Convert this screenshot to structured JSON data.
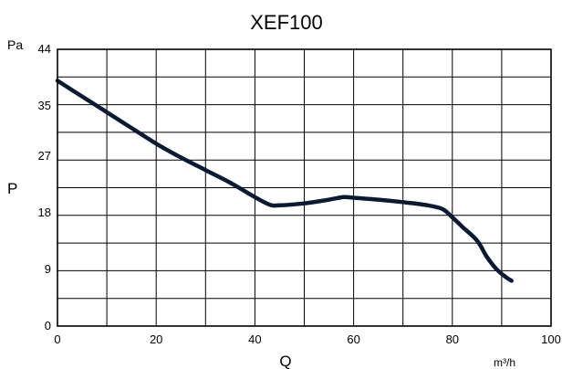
{
  "chart_data": {
    "type": "line",
    "title": "XEF100",
    "ylabel": "P",
    "yunit": "Pa",
    "xlabel": "Q",
    "xunit": "m³/h",
    "x_ticks": [
      0,
      20,
      40,
      60,
      80,
      100
    ],
    "y_ticks": [
      0,
      9,
      18,
      27,
      35,
      44
    ],
    "xlim": [
      0,
      100
    ],
    "ylim": [
      0,
      44
    ],
    "grid": true,
    "x_grid": [
      0,
      10,
      20,
      30,
      40,
      50,
      60,
      70,
      80,
      90,
      100
    ],
    "y_grid": [
      0,
      4.4,
      8.8,
      13.2,
      17.6,
      22,
      26.4,
      30.8,
      35.2,
      39.6,
      44
    ],
    "series": [
      {
        "x": [
          0,
          5,
          10,
          15,
          20,
          25,
          30,
          35,
          40,
          43,
          45,
          50,
          55,
          58,
          60,
          65,
          70,
          75,
          78,
          80,
          82,
          85,
          87,
          89,
          91,
          92
        ],
        "y": [
          39,
          36.5,
          34,
          31.5,
          29,
          26.8,
          24.8,
          22.8,
          20.5,
          19.3,
          19.2,
          19.5,
          20.1,
          20.5,
          20.4,
          20.1,
          19.7,
          19.2,
          18.6,
          17.3,
          15.8,
          13.6,
          11,
          9,
          7.7,
          7.2
        ]
      }
    ]
  }
}
